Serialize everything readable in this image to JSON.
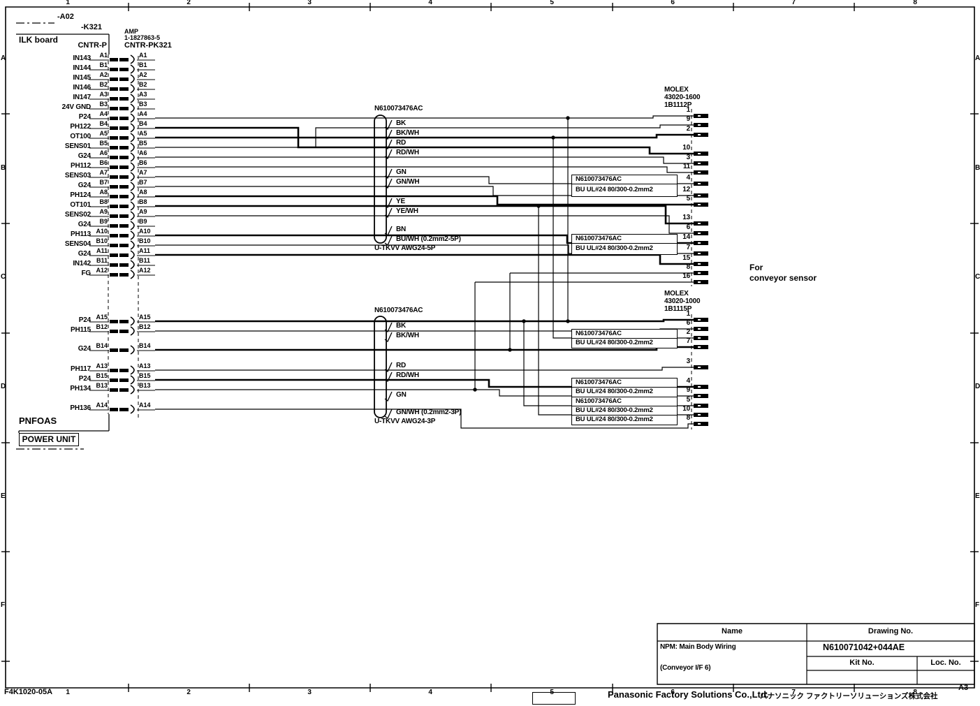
{
  "frame": {
    "top_cols": [
      "1",
      "2",
      "3",
      "4",
      "5",
      "6",
      "7",
      "8"
    ],
    "side_rows": [
      "A",
      "B",
      "C",
      "D",
      "E",
      "F"
    ],
    "doc_code": "F4K1020-05A",
    "sheet": "A3"
  },
  "board": {
    "ref_a02": "-A02",
    "ref_k321": "-K321",
    "name": "ILK board",
    "connector": "CNTR-P",
    "amp_mfr": "AMP",
    "amp_part": "1-1827863-5",
    "amp_ref": "CNTR-PK321",
    "power_net": "PNFOAS",
    "power_unit": "POWER UNIT"
  },
  "left_connector": {
    "upper_rows": [
      {
        "signal": "IN143",
        "pin": "A1"
      },
      {
        "signal": "IN144",
        "pin": "B1"
      },
      {
        "signal": "IN145",
        "pin": "A2"
      },
      {
        "signal": "IN146",
        "pin": "B2"
      },
      {
        "signal": "IN147",
        "pin": "A3"
      },
      {
        "signal": "24V GND",
        "pin": "B3"
      },
      {
        "signal": "P24",
        "pin": "A4"
      },
      {
        "signal": "PH122",
        "pin": "B4"
      },
      {
        "signal": "OT100",
        "pin": "A5"
      },
      {
        "signal": "SENS01",
        "pin": "B5"
      },
      {
        "signal": "G24",
        "pin": "A6"
      },
      {
        "signal": "PH112",
        "pin": "B6"
      },
      {
        "signal": "SENS03",
        "pin": "A7"
      },
      {
        "signal": "G24",
        "pin": "B7"
      },
      {
        "signal": "PH124",
        "pin": "A8"
      },
      {
        "signal": "OT101",
        "pin": "B8"
      },
      {
        "signal": "SENS02",
        "pin": "A9"
      },
      {
        "signal": "G24",
        "pin": "B9"
      },
      {
        "signal": "PH113",
        "pin": "A10"
      },
      {
        "signal": "SENS04",
        "pin": "B10"
      },
      {
        "signal": "G24",
        "pin": "A11"
      },
      {
        "signal": "IN142",
        "pin": "B11"
      },
      {
        "signal": "FG",
        "pin": "A12"
      }
    ],
    "lower_rows": [
      {
        "signal": "P24",
        "pin": "A15"
      },
      {
        "signal": "PH115",
        "pin": "B12"
      },
      {
        "signal": "G24",
        "pin": "B14"
      },
      {
        "signal": "PH117",
        "pin": "A13"
      },
      {
        "signal": "P24",
        "pin": "B15"
      },
      {
        "signal": "PH134",
        "pin": "B13"
      },
      {
        "signal": "PH136",
        "pin": "A14"
      }
    ]
  },
  "cables": {
    "upper": {
      "part": "N610073476AC",
      "spec": "U-TKVV AWG24-5P",
      "wires": [
        "BK",
        "BK/WH",
        "RD",
        "RD/WH",
        "GN",
        "GN/WH",
        "YE",
        "YE/WH",
        "BN",
        "BU/WH (0.2mm2-5P)"
      ]
    },
    "lower": {
      "part": "N610073476AC",
      "spec": "U-TKVV AWG24-3P",
      "wires": [
        "BK",
        "BK/WH",
        "RD",
        "RD/WH",
        "GN",
        "GN/WH (0.2mm2-3P)"
      ]
    }
  },
  "single_wire": {
    "part": "N610073476AC",
    "spec": "BU  UL#24 80/300-0.2mm2"
  },
  "right_connectors": {
    "upper": {
      "mfr": "MOLEX",
      "part": "43020-1600",
      "ref": "1B1112P",
      "pins": [
        "1",
        "9",
        "2",
        "10",
        "3",
        "11",
        "4",
        "12",
        "5",
        "13",
        "6",
        "14",
        "7",
        "15",
        "8",
        "16"
      ]
    },
    "lower": {
      "mfr": "MOLEX",
      "part": "43020-1000",
      "ref": "1B1115P",
      "pins": [
        "1",
        "6",
        "2",
        "7",
        "3",
        "4",
        "9",
        "5",
        "10",
        "8"
      ]
    }
  },
  "note": {
    "line1": "For",
    "line2": "conveyor sensor"
  },
  "title_block": {
    "name_header": "Name",
    "drawing_header": "Drawing No.",
    "name_line1": "NPM: Main Body Wiring",
    "name_line2": "(Conveyor I/F 6)",
    "drawing_no": "N610071042+044AE",
    "kit_header": "Kit No.",
    "loc_header": "Loc. No."
  },
  "footer": {
    "company_en": "Panasonic Factory Solutions Co.,Ltd.",
    "company_jp": "パナソニック ファクトリーソリューションズ株式会社"
  }
}
